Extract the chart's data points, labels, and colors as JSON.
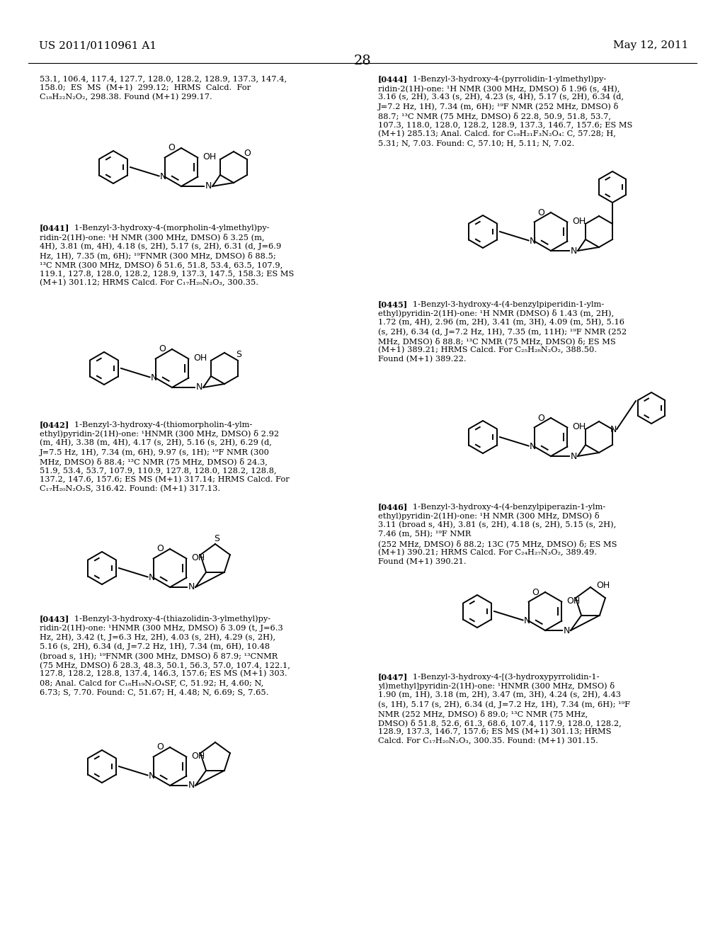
{
  "header_left": "US 2011/0110961 A1",
  "header_right": "May 12, 2011",
  "page_num": "28",
  "bg_color": "#ffffff",
  "body_fontsize": 8.2,
  "header_fontsize": 11.0
}
